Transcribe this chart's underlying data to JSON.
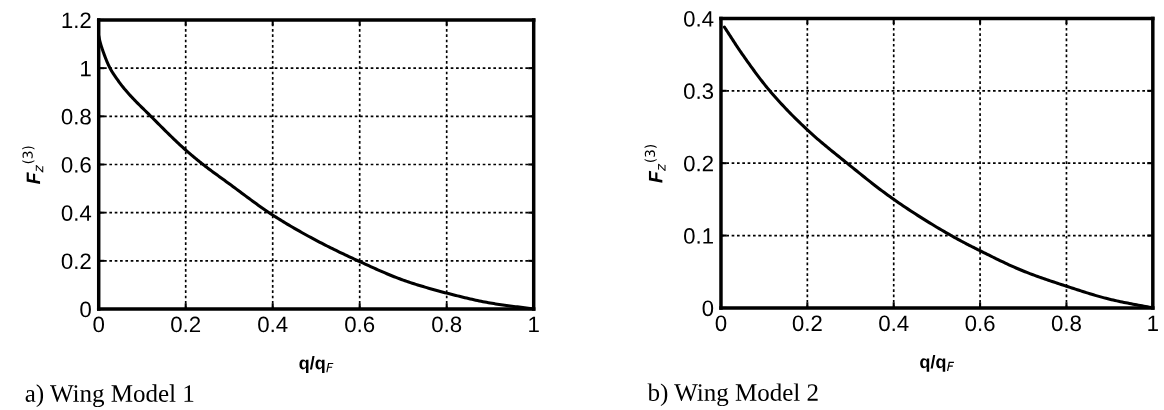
{
  "chart_data": [
    {
      "type": "line",
      "xlabel": "q/q$_{F}$",
      "ylabel": "F$_{z}$$^{(3)}$",
      "annotations": [
        "a) Wing Model 1"
      ],
      "series": [
        {
          "color": "#000000",
          "x": [
            0,
            0.003,
            0.008,
            0.026,
            0.04,
            0.061,
            0.12,
            0.2,
            0.24,
            0.3,
            0.4,
            0.5,
            0.6,
            0.7,
            0.8,
            0.9,
            1
          ],
          "values": [
            1.134,
            1.11,
            1.08,
            1.0,
            0.96,
            0.91,
            0.8,
            0.66,
            0.6,
            0.52,
            0.39,
            0.285,
            0.197,
            0.12,
            0.066,
            0.025,
            0
          ]
        }
      ],
      "xlim": [
        0,
        1
      ],
      "ylim": [
        0,
        1.2
      ],
      "xticks": [
        0,
        0.2,
        0.4,
        0.6,
        0.8,
        1
      ],
      "yticks": [
        0,
        0.2,
        0.4,
        0.6,
        0.8,
        1,
        1.2
      ],
      "grid": true,
      "line_style": "solid"
    },
    {
      "type": "line",
      "xlabel": "q/q$_{F}$",
      "ylabel": "F$_{z}$$^{(3)}$",
      "annotations": [
        "b) Wing Model 2"
      ],
      "series": [
        {
          "color": "#000000",
          "x": [
            0.008,
            0.05,
            0.113,
            0.2,
            0.292,
            0.4,
            0.533,
            0.6,
            0.7,
            0.8,
            0.9,
            1
          ],
          "values": [
            0.388,
            0.35,
            0.3,
            0.246,
            0.2,
            0.15,
            0.1,
            0.079,
            0.051,
            0.03,
            0.012,
            0
          ]
        }
      ],
      "xlim": [
        0,
        1
      ],
      "ylim": [
        0,
        0.4
      ],
      "xticks": [
        0,
        0.2,
        0.4,
        0.6,
        0.8,
        1
      ],
      "yticks": [
        0,
        0.1,
        0.2,
        0.3,
        0.4
      ],
      "grid": true,
      "line_style": "solid"
    }
  ]
}
